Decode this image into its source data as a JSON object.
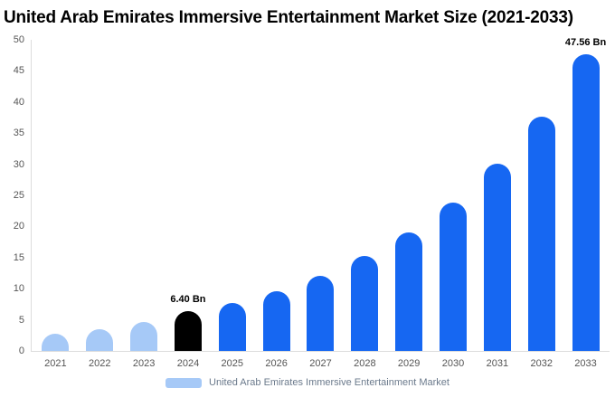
{
  "title": "United Arab Emirates Immersive Entertainment Market Size (2021-2033)",
  "legend": {
    "label": "United Arab Emirates Immersive Entertainment Market",
    "swatch_color": "#a6c9f7"
  },
  "colors": {
    "light_blue": "#a6c9f7",
    "blue": "#1667f2",
    "black": "#000000",
    "axis_text": "#555555",
    "legend_text": "#6b7a8c"
  },
  "chart_data": {
    "type": "bar",
    "title": "United Arab Emirates Immersive Entertainment Market Size (2021-2033)",
    "xlabel": "",
    "ylabel": "",
    "categories": [
      "2021",
      "2022",
      "2023",
      "2024",
      "2025",
      "2026",
      "2027",
      "2028",
      "2029",
      "2030",
      "2031",
      "2032",
      "2033"
    ],
    "values": [
      2.8,
      3.5,
      4.6,
      6.4,
      7.7,
      9.6,
      12.0,
      15.2,
      19.0,
      23.8,
      30.0,
      37.6,
      47.56
    ],
    "bar_colors": [
      "#a6c9f7",
      "#a6c9f7",
      "#a6c9f7",
      "#000000",
      "#1667f2",
      "#1667f2",
      "#1667f2",
      "#1667f2",
      "#1667f2",
      "#1667f2",
      "#1667f2",
      "#1667f2",
      "#1667f2"
    ],
    "point_labels": [
      "",
      "",
      "",
      "6.40 Bn",
      "",
      "",
      "",
      "",
      "",
      "",
      "",
      "",
      "47.56 Bn"
    ],
    "ylim": [
      0,
      50
    ],
    "yticks": [
      0,
      5,
      10,
      15,
      20,
      25,
      30,
      35,
      40,
      45,
      50
    ],
    "grid": false,
    "legend_position": "bottom",
    "legend_entries": [
      "United Arab Emirates Immersive Entertainment Market"
    ]
  }
}
